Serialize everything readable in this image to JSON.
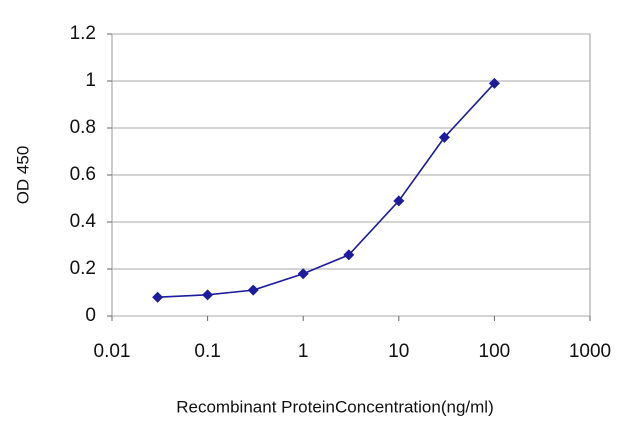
{
  "chart_data": {
    "type": "line",
    "xlabel": "Recombinant ProteinConcentration(ng/ml)",
    "ylabel": "OD 450",
    "x": [
      0.03,
      0.1,
      0.3,
      1,
      3,
      10,
      30,
      100
    ],
    "values": [
      0.08,
      0.09,
      0.11,
      0.18,
      0.26,
      0.49,
      0.76,
      0.99
    ],
    "color": "#1c1c9c",
    "xscale": "log",
    "xlim": [
      0.01,
      1000
    ],
    "xticks": [
      0.01,
      0.1,
      1,
      10,
      100,
      1000
    ],
    "ylim": [
      0,
      1.2
    ],
    "yticks": [
      0,
      0.2,
      0.4,
      0.6,
      0.8,
      1,
      1.2
    ],
    "grid": true
  }
}
